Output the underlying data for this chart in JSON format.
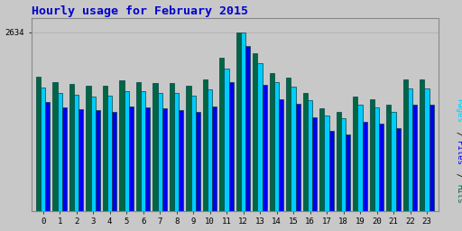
{
  "title": "Hourly usage for February 2015",
  "hours": [
    0,
    1,
    2,
    3,
    4,
    5,
    6,
    7,
    8,
    9,
    10,
    11,
    12,
    13,
    14,
    15,
    16,
    17,
    18,
    19,
    20,
    21,
    22,
    23
  ],
  "pages": [
    1820,
    1740,
    1710,
    1690,
    1700,
    1760,
    1760,
    1740,
    1740,
    1700,
    1790,
    2100,
    2634,
    2180,
    1900,
    1830,
    1630,
    1410,
    1360,
    1560,
    1520,
    1460,
    1800,
    1800
  ],
  "files": [
    1600,
    1530,
    1500,
    1480,
    1460,
    1540,
    1530,
    1510,
    1490,
    1460,
    1540,
    1900,
    2430,
    1860,
    1640,
    1580,
    1380,
    1180,
    1130,
    1310,
    1280,
    1220,
    1560,
    1560
  ],
  "hits": [
    1980,
    1900,
    1870,
    1850,
    1840,
    1920,
    1900,
    1880,
    1880,
    1840,
    1940,
    2250,
    2634,
    2320,
    2030,
    1960,
    1740,
    1510,
    1460,
    1680,
    1640,
    1570,
    1940,
    1940
  ],
  "pages_color": "#00CCFF",
  "files_color": "#0000EE",
  "hits_color": "#006644",
  "bg_color": "#C8C8C8",
  "plot_bg_color": "#C8C8C8",
  "title_color": "#0000CC",
  "ymax": 2634,
  "bar_width": 0.28,
  "edgecolor": "#004444"
}
